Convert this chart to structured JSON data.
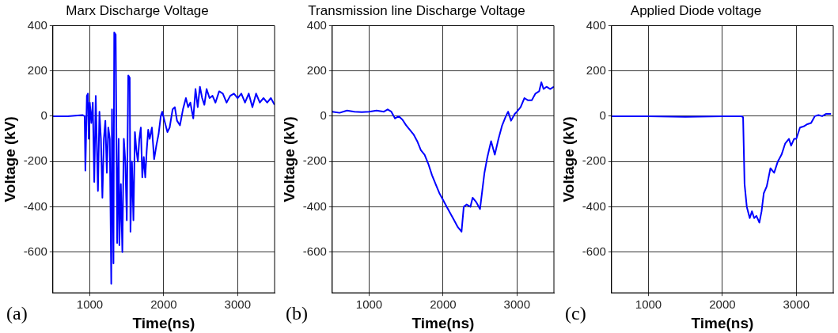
{
  "chart_data": [
    {
      "type": "line",
      "title": "Marx Discharge Voltage",
      "xlabel": "Time(ns)",
      "ylabel": "Voltage (kV)",
      "annotations": [
        "(a)"
      ],
      "color": "#0000ff",
      "grid": true,
      "legend": false,
      "xlim": [
        500,
        3500
      ],
      "ylim": [
        -780,
        400
      ],
      "xticks": [
        1000,
        2000,
        3000
      ],
      "yticks": [
        -600,
        -400,
        -200,
        0,
        200,
        400
      ],
      "x": [
        500,
        700,
        900,
        930,
        940,
        960,
        975,
        985,
        1000,
        1020,
        1040,
        1060,
        1080,
        1100,
        1110,
        1130,
        1150,
        1170,
        1190,
        1210,
        1230,
        1250,
        1270,
        1290,
        1300,
        1320,
        1330,
        1350,
        1370,
        1390,
        1400,
        1420,
        1440,
        1460,
        1480,
        1500,
        1520,
        1540,
        1550,
        1570,
        1590,
        1610,
        1630,
        1650,
        1670,
        1690,
        1710,
        1730,
        1750,
        1770,
        1790,
        1810,
        1840,
        1870,
        1900,
        1930,
        1960,
        1980,
        2010,
        2050,
        2080,
        2120,
        2150,
        2180,
        2220,
        2260,
        2300,
        2330,
        2360,
        2400,
        2430,
        2460,
        2490,
        2520,
        2550,
        2580,
        2620,
        2660,
        2700,
        2750,
        2800,
        2850,
        2900,
        2950,
        3000,
        3050,
        3100,
        3150,
        3200,
        3250,
        3300,
        3350,
        3400,
        3450,
        3500
      ],
      "values": [
        0,
        0,
        5,
        0,
        -240,
        90,
        100,
        -100,
        60,
        -30,
        60,
        -290,
        90,
        -200,
        -330,
        20,
        -100,
        -360,
        -100,
        -20,
        -250,
        -50,
        -100,
        -740,
        30,
        -650,
        370,
        360,
        -560,
        -100,
        -570,
        -300,
        -600,
        -100,
        -200,
        -460,
        180,
        170,
        -510,
        -200,
        -460,
        -70,
        -150,
        -200,
        -100,
        -50,
        -270,
        -180,
        -270,
        -150,
        -60,
        -100,
        -50,
        -190,
        -130,
        -80,
        0,
        20,
        -20,
        -70,
        -50,
        30,
        40,
        -20,
        -40,
        30,
        80,
        40,
        60,
        -10,
        120,
        40,
        130,
        80,
        50,
        120,
        80,
        90,
        60,
        110,
        100,
        60,
        90,
        100,
        80,
        100,
        60,
        100,
        40,
        100,
        60,
        80,
        60,
        80,
        50
      ]
    },
    {
      "type": "line",
      "title": "Transmission line Discharge Voltage",
      "xlabel": "Time(ns)",
      "ylabel": "Voltage (kV)",
      "annotations": [
        "(b)"
      ],
      "color": "#0000ff",
      "grid": true,
      "legend": false,
      "xlim": [
        500,
        3500
      ],
      "ylim": [
        -780,
        400
      ],
      "xticks": [
        1000,
        2000,
        3000
      ],
      "yticks": [
        -600,
        -400,
        -200,
        0,
        200,
        400
      ],
      "x": [
        500,
        600,
        700,
        800,
        900,
        1000,
        1100,
        1200,
        1250,
        1300,
        1350,
        1400,
        1450,
        1500,
        1550,
        1600,
        1650,
        1700,
        1750,
        1800,
        1850,
        1900,
        1950,
        2000,
        2050,
        2100,
        2150,
        2200,
        2250,
        2280,
        2320,
        2370,
        2400,
        2450,
        2500,
        2530,
        2560,
        2600,
        2650,
        2700,
        2750,
        2800,
        2850,
        2880,
        2920,
        2970,
        3000,
        3050,
        3100,
        3150,
        3200,
        3250,
        3300,
        3330,
        3360,
        3400,
        3450,
        3500
      ],
      "values": [
        20,
        15,
        25,
        20,
        18,
        20,
        25,
        20,
        30,
        20,
        -10,
        0,
        -15,
        -40,
        -60,
        -80,
        -110,
        -150,
        -170,
        -210,
        -260,
        -300,
        -340,
        -370,
        -400,
        -430,
        -460,
        -490,
        -510,
        -400,
        -390,
        -400,
        -360,
        -380,
        -410,
        -330,
        -250,
        -180,
        -110,
        -170,
        -100,
        -40,
        0,
        20,
        -20,
        10,
        20,
        40,
        80,
        70,
        70,
        100,
        110,
        150,
        120,
        130,
        120,
        130
      ]
    },
    {
      "type": "line",
      "title": "Applied Diode voltage",
      "xlabel": "Time(ns)",
      "ylabel": "Voltage (kV)",
      "annotations": [
        "(c)"
      ],
      "color": "#0000ff",
      "grid": true,
      "legend": false,
      "xlim": [
        500,
        3500
      ],
      "ylim": [
        -780,
        400
      ],
      "xticks": [
        1000,
        2000,
        3000
      ],
      "yticks": [
        -600,
        -400,
        -200,
        0,
        200,
        400
      ],
      "x": [
        500,
        1000,
        1500,
        2000,
        2260,
        2280,
        2300,
        2330,
        2370,
        2400,
        2430,
        2460,
        2500,
        2530,
        2560,
        2600,
        2650,
        2700,
        2750,
        2800,
        2850,
        2900,
        2930,
        2970,
        3000,
        3050,
        3100,
        3150,
        3200,
        3250,
        3300,
        3350,
        3400,
        3470
      ],
      "values": [
        0,
        0,
        -3,
        0,
        0,
        -5,
        -300,
        -400,
        -450,
        -420,
        -450,
        -440,
        -470,
        -420,
        -340,
        -310,
        -230,
        -250,
        -200,
        -170,
        -120,
        -100,
        -130,
        -100,
        -100,
        -50,
        -45,
        -35,
        -30,
        0,
        5,
        0,
        10,
        10
      ]
    }
  ]
}
